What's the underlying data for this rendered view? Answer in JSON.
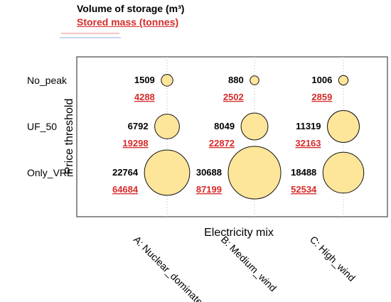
{
  "legend": {
    "volume": "Volume of storage (m³)",
    "mass": "Stored mass (tonnes)"
  },
  "chart_data": {
    "type": "bubble",
    "xlabel": "Electricity mix",
    "ylabel": "Price threshold",
    "x_categories": [
      "A: Nuclear_dominated",
      "B: Medium_wind",
      "C: High_wind"
    ],
    "y_categories": [
      "No_peak",
      "UF_50",
      "Only_VRE"
    ],
    "grid": "vertical dotted",
    "bubble_color": "#fde59a",
    "mass_color": "#d62a2a",
    "points": [
      {
        "x": "A: Nuclear_dominated",
        "y": "No_peak",
        "volume": 1509,
        "mass": 4288
      },
      {
        "x": "B: Medium_wind",
        "y": "No_peak",
        "volume": 880,
        "mass": 2502
      },
      {
        "x": "C: High_wind",
        "y": "No_peak",
        "volume": 1006,
        "mass": 2859
      },
      {
        "x": "A: Nuclear_dominated",
        "y": "UF_50",
        "volume": 6792,
        "mass": 19298
      },
      {
        "x": "B: Medium_wind",
        "y": "UF_50",
        "volume": 8049,
        "mass": 22872
      },
      {
        "x": "C: High_wind",
        "y": "UF_50",
        "volume": 11319,
        "mass": 32163
      },
      {
        "x": "A: Nuclear_dominated",
        "y": "Only_VRE",
        "volume": 22764,
        "mass": 64684
      },
      {
        "x": "B: Medium_wind",
        "y": "Only_VRE",
        "volume": 30688,
        "mass": 87199
      },
      {
        "x": "C: High_wind",
        "y": "Only_VRE",
        "volume": 18488,
        "mass": 52534
      }
    ]
  }
}
